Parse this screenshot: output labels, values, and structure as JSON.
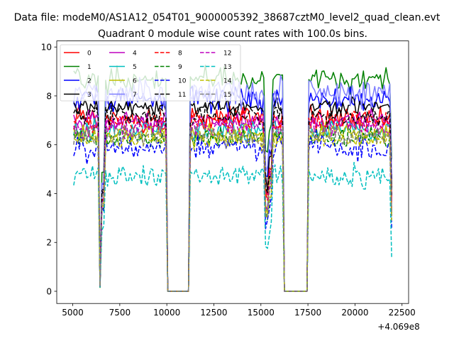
{
  "chart_data": {
    "type": "line",
    "suptitle": "Data file: modeM0/AS1A12_054T01_9000005392_38687cztM0_level2_quad_clean.evt",
    "title": "Quadrant 0 module wise count rates with 100.0s bins.",
    "xlabel": "",
    "ylabel": "",
    "x_offset_label": "+4.069e8",
    "xlim": [
      4150,
      22850
    ],
    "ylim": [
      -0.5,
      10.25
    ],
    "x_ticks": [
      5000,
      7500,
      10000,
      12500,
      15000,
      17500,
      20000,
      22500
    ],
    "x_tick_labels": [
      "5000",
      "7500",
      "10000",
      "12500",
      "15000",
      "17500",
      "20000",
      "22500"
    ],
    "y_ticks": [
      0,
      2,
      4,
      6,
      8,
      10
    ],
    "y_tick_labels": [
      "0",
      "2",
      "4",
      "6",
      "8",
      "10"
    ],
    "legend_position": "top-left",
    "segments": [
      {
        "start": 5050,
        "end": 6350
      },
      {
        "start": 6550,
        "end": 9950
      },
      {
        "start": 11250,
        "end": 15150
      },
      {
        "start": 15450,
        "end": 16150
      },
      {
        "start": 17550,
        "end": 21950
      }
    ],
    "series": [
      {
        "name": "0",
        "color": "#ff0000",
        "dash": "solid",
        "level": 7.1,
        "noise": 0.35
      },
      {
        "name": "1",
        "color": "#008000",
        "dash": "solid",
        "level": 8.7,
        "noise": 0.35
      },
      {
        "name": "2",
        "color": "#0000ff",
        "dash": "solid",
        "level": 7.9,
        "noise": 0.35
      },
      {
        "name": "3",
        "color": "#000000",
        "dash": "solid",
        "level": 7.55,
        "noise": 0.25
      },
      {
        "name": "4",
        "color": "#bf00bf",
        "dash": "solid",
        "level": 7.0,
        "noise": 0.3
      },
      {
        "name": "5",
        "color": "#00bfbf",
        "dash": "solid",
        "level": 6.6,
        "noise": 0.3
      },
      {
        "name": "6",
        "color": "#bfbf00",
        "dash": "solid",
        "level": 6.5,
        "noise": 0.3
      },
      {
        "name": "7",
        "color": "#7f7fff",
        "dash": "solid",
        "level": 8.1,
        "noise": 0.45
      },
      {
        "name": "8",
        "color": "#ff0000",
        "dash": "dashed",
        "level": 6.9,
        "noise": 0.3
      },
      {
        "name": "9",
        "color": "#008000",
        "dash": "dashed",
        "level": 6.3,
        "noise": 0.3
      },
      {
        "name": "10",
        "color": "#0000ff",
        "dash": "dashed",
        "level": 5.9,
        "noise": 0.35
      },
      {
        "name": "11",
        "color": "#000000",
        "dash": "dashed",
        "level": 7.2,
        "noise": 0.3
      },
      {
        "name": "12",
        "color": "#bf00bf",
        "dash": "dashed",
        "level": 6.7,
        "noise": 0.3
      },
      {
        "name": "13",
        "color": "#00bfbf",
        "dash": "dashed",
        "level": 4.7,
        "noise": 0.3
      },
      {
        "name": "14",
        "color": "#bfbf00",
        "dash": "dashed",
        "level": 6.2,
        "noise": 0.3
      },
      {
        "name": "15",
        "color": "#7f7f7f",
        "dash": "dashed",
        "level": 6.4,
        "noise": 0.3
      }
    ]
  }
}
